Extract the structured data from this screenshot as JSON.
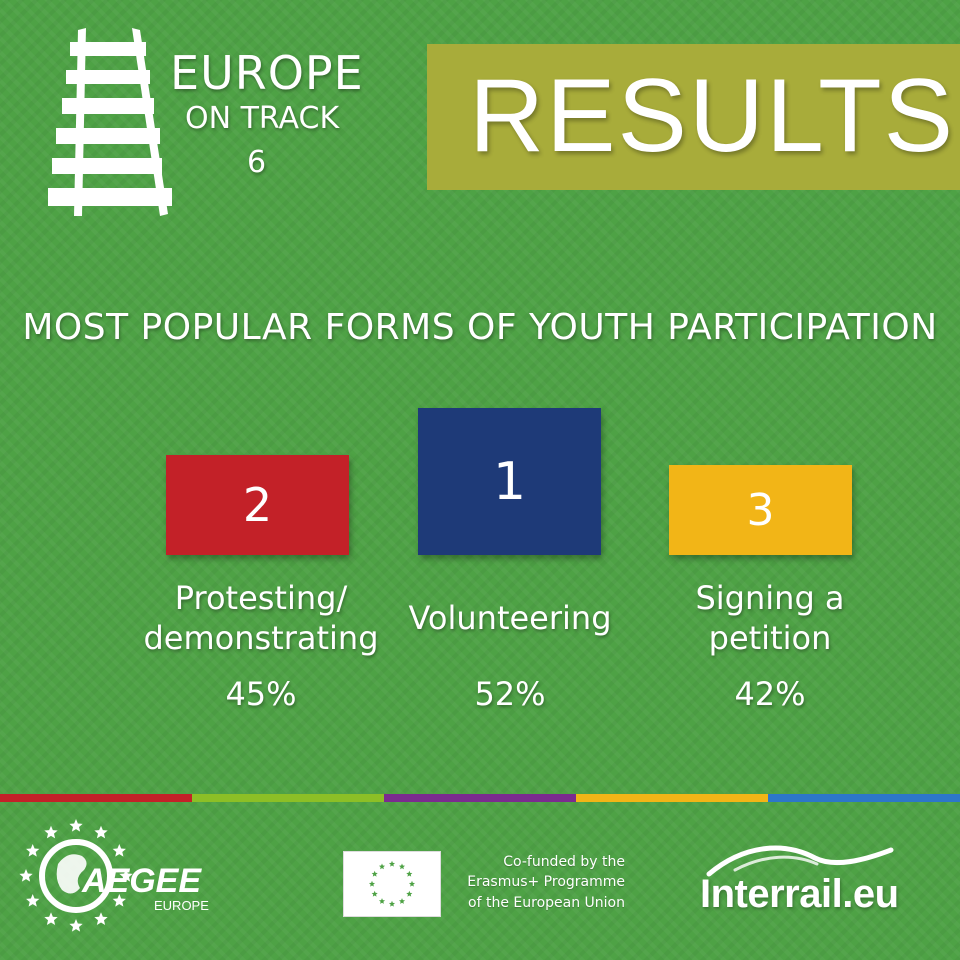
{
  "header": {
    "brand_line1": "EUROPE",
    "brand_line2": "ON TRACK",
    "brand_number": "6",
    "results_title": "RESULTS"
  },
  "subtitle": "MOST POPULAR FORMS OF YOUTH PARTICIPATION",
  "podium": [
    {
      "rank": "2",
      "label_line1": "Protesting/",
      "label_line2": "demonstrating",
      "percent": "45%",
      "color": "#c32128"
    },
    {
      "rank": "1",
      "label_line1": "Volunteering",
      "label_line2": "",
      "percent": "52%",
      "color": "#1e3a78"
    },
    {
      "rank": "3",
      "label_line1": "Signing a",
      "label_line2": "petition",
      "percent": "42%",
      "color": "#f2b517"
    }
  ],
  "strip_colors": [
    "#c32128",
    "#8cbf26",
    "#7b2b8f",
    "#f2b517",
    "#2d77c9"
  ],
  "footer": {
    "aegee_name": "AEGEE",
    "aegee_sub": "EUROPE",
    "eu_line1": "Co-funded by the",
    "eu_line2": "Erasmus+ Programme",
    "eu_line3": "of the European Union",
    "interrail": "Interrail.eu"
  },
  "icons": {
    "rail_logo": "railway-track-icon",
    "eu_flag": "eu-flag-icon",
    "aegee_logo": "aegee-stars-globe-icon",
    "interrail_logo": "interrail-swoosh-icon"
  },
  "colors": {
    "background": "#4ea245",
    "banner": "#a8ac3a"
  }
}
